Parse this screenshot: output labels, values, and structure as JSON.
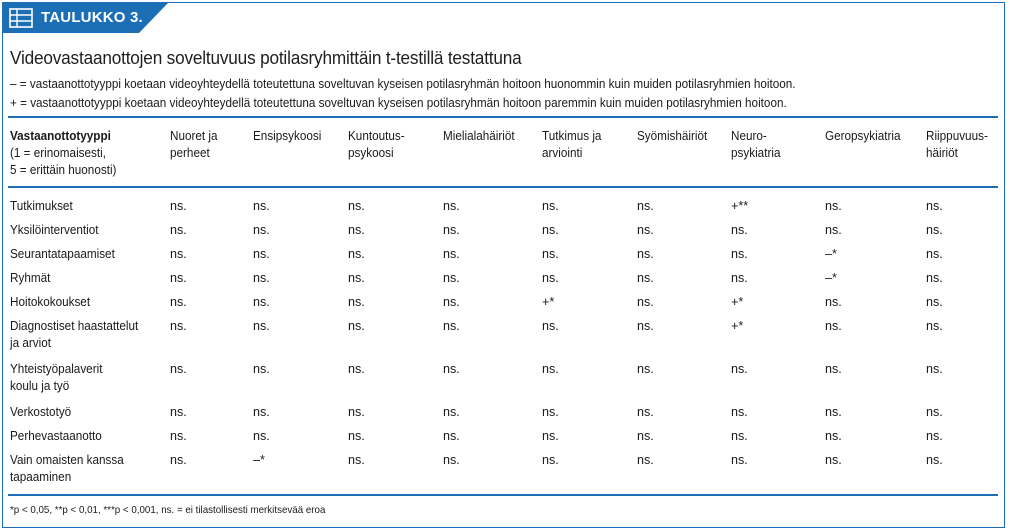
{
  "tag": {
    "label": "TAULUKKO 3.",
    "icon": "table-list-icon"
  },
  "title": "Videovastaanottojen soveltuvuus potilasryhmittäin t-testillä testattuna",
  "legend": [
    "– = vastaanottotyyppi koetaan videoyhteydellä toteutettuna soveltuvan kyseisen potilasryhmän hoitoon huonommin kuin muiden potilasryhmien hoitoon.",
    "+ = vastaanottotyyppi koetaan videoyhteydellä toteutettuna soveltuvan kyseisen potilasryhmän hoitoon paremmin kuin muiden potilasryhmien hoitoon."
  ],
  "table": {
    "first_header": {
      "title": "Vastaanottotyyppi",
      "line2": "(1 = erinomaisesti,",
      "line3": "5 = erittäin huonosti)"
    },
    "columns": [
      [
        "Nuoret ja",
        "perheet"
      ],
      [
        "Ensipsykoosi"
      ],
      [
        "Kuntoutus-",
        "psykoosi"
      ],
      [
        "Mielialahäiriöt"
      ],
      [
        "Tutkimus ja",
        "arviointi"
      ],
      [
        "Syömishäiriöt"
      ],
      [
        "Neuro-",
        "psykiatria"
      ],
      [
        "Geropsykiatria"
      ],
      [
        "Riippuvuus-",
        "häiriöt"
      ]
    ],
    "rows": [
      {
        "label": [
          "Tutkimukset"
        ],
        "cells": [
          "ns.",
          "ns.",
          "ns.",
          "ns.",
          "ns.",
          "ns.",
          "+**",
          "ns.",
          "ns."
        ]
      },
      {
        "label": [
          "Yksilöinterventiot"
        ],
        "cells": [
          "ns.",
          "ns.",
          "ns.",
          "ns.",
          "ns.",
          "ns.",
          "ns.",
          "ns.",
          "ns."
        ]
      },
      {
        "label": [
          "Seurantatapaamiset"
        ],
        "cells": [
          "ns.",
          "ns.",
          "ns.",
          "ns.",
          "ns.",
          "ns.",
          "ns.",
          "–*",
          "ns."
        ]
      },
      {
        "label": [
          "Ryhmät"
        ],
        "cells": [
          "ns.",
          "ns.",
          "ns.",
          "ns.",
          "ns.",
          "ns.",
          "ns.",
          "–*",
          "ns."
        ]
      },
      {
        "label": [
          "Hoitokokoukset"
        ],
        "cells": [
          "ns.",
          "ns.",
          "ns.",
          "ns.",
          "+*",
          "ns.",
          "+*",
          "ns.",
          "ns."
        ]
      },
      {
        "label": [
          "Diagnostiset haastattelut",
          "ja arviot"
        ],
        "cells": [
          "ns.",
          "ns.",
          "ns.",
          "ns.",
          "ns.",
          "ns.",
          "+*",
          "ns.",
          "ns."
        ]
      },
      {
        "label": [
          "Yhteistyöpalaverit",
          "koulu ja työ"
        ],
        "cells": [
          "ns.",
          "ns.",
          "ns.",
          "ns.",
          "ns.",
          "ns.",
          "ns.",
          "ns.",
          "ns."
        ]
      },
      {
        "label": [
          "Verkostotyö"
        ],
        "cells": [
          "ns.",
          "ns.",
          "ns.",
          "ns.",
          "ns.",
          "ns.",
          "ns.",
          "ns.",
          "ns."
        ]
      },
      {
        "label": [
          "Perhevastaanotto"
        ],
        "cells": [
          "ns.",
          "ns.",
          "ns.",
          "ns.",
          "ns.",
          "ns.",
          "ns.",
          "ns.",
          "ns."
        ]
      },
      {
        "label": [
          "Vain omaisten kanssa",
          "tapaaminen"
        ],
        "cells": [
          "ns.",
          "–*",
          "ns.",
          "ns.",
          "ns.",
          "ns.",
          "ns.",
          "ns.",
          "ns."
        ]
      }
    ]
  },
  "footnote": "*p < 0,05, **p < 0,01, ***p < 0,001, ns. = ei tilastollisesti merkitsevää eroa",
  "colors": {
    "accent": "#1c6fb5"
  }
}
